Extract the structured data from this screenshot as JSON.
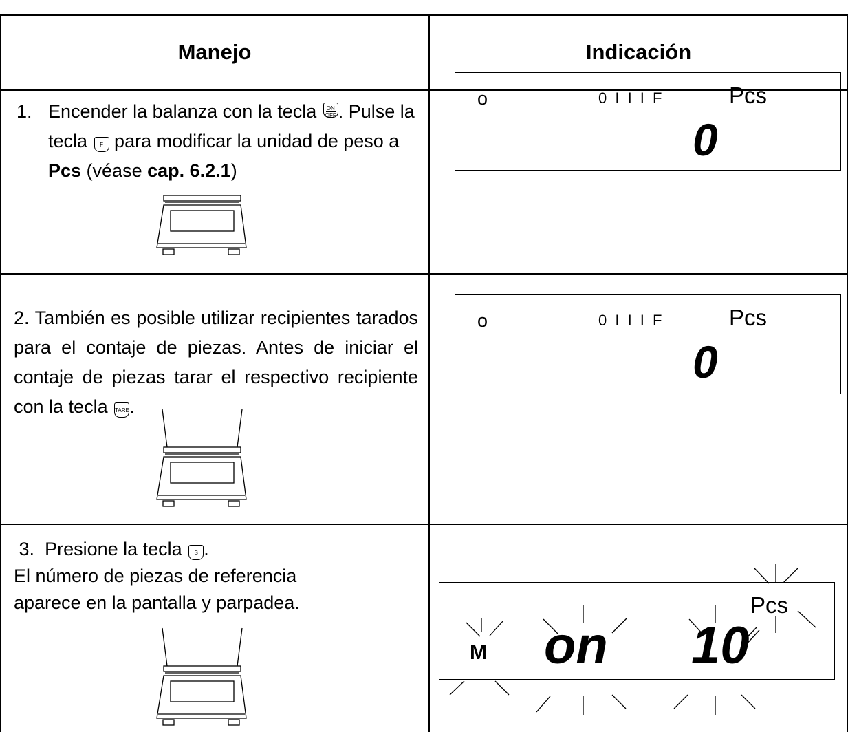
{
  "table": {
    "headers": [
      "Manejo",
      "Indicación"
    ],
    "rows": [
      {
        "number": "1.",
        "text": [
          "Encender la balanza con la tecla ",
          ". Pulse la tecla ",
          " para modificar la unidad de peso a ",
          "Pcs",
          " (véase ",
          "cap. 6.2.1",
          ")"
        ],
        "keys": [
          [
            "ON",
            "OFF"
          ],
          [
            "F"
          ]
        ],
        "display": {
          "status": "o",
          "indicators": "0 I I I F",
          "unit": "Pcs",
          "value": "0"
        }
      },
      {
        "number": "2.",
        "text": [
          "También es posible utilizar recipientes tarados para el contaje de piezas. Antes de iniciar el contaje de piezas tarar el respectivo recipiente con la tecla ",
          "."
        ],
        "keys": [
          [
            "TARE"
          ]
        ],
        "display": {
          "status": "o",
          "indicators": "0 I I I F",
          "unit": "Pcs",
          "value": "0"
        }
      },
      {
        "number": "3.",
        "text": [
          "Presione la tecla ",
          ".",
          "El número de piezas de referencia aparece en la pantalla y parpadea."
        ],
        "keys": [
          [
            "S"
          ]
        ],
        "display": {
          "mode": "M",
          "status": "on",
          "value": "10",
          "unit": "Pcs"
        }
      }
    ]
  }
}
